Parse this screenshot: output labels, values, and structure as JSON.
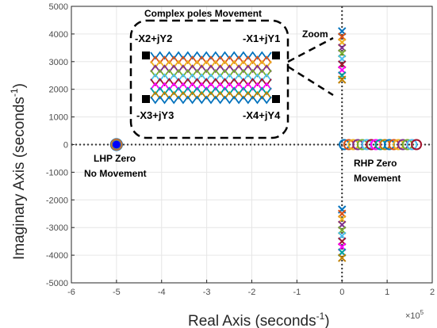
{
  "chart_data": {
    "type": "scatter",
    "title": "",
    "xlabel": "Real Axis (seconds",
    "xlabel_sup": "-1",
    "xlabel_close": ")",
    "ylabel": "Imaginary Axis (seconds",
    "ylabel_sup": "-1",
    "ylabel_close": ")",
    "x_exponent_base": "×10",
    "x_exponent_power": "5",
    "xlim": [
      -6,
      2
    ],
    "ylim": [
      -5000,
      5000
    ],
    "x_ticks": [
      "-6",
      "-5",
      "-4",
      "-3",
      "-2",
      "-1",
      "0",
      "1",
      "2"
    ],
    "y_ticks": [
      "5000",
      "4000",
      "3000",
      "2000",
      "1000",
      "0",
      "-1000",
      "-2000",
      "-3000",
      "-4000",
      "-5000"
    ],
    "grid": true,
    "series": [
      {
        "kind": "lhp-zero",
        "marker": "circle",
        "x": [
          -5,
          -5,
          -5,
          -5,
          -5,
          -5,
          -5
        ],
        "y": [
          0,
          0,
          0,
          0,
          0,
          0,
          0
        ]
      },
      {
        "kind": "rhp-zeros",
        "marker": "circle",
        "x": [
          0.05,
          0.15,
          0.25,
          0.35,
          0.45,
          0.55,
          0.65,
          0.75,
          0.85,
          0.95,
          1.05,
          1.15,
          1.25,
          1.35,
          1.45,
          1.55,
          1.65
        ],
        "y": [
          0,
          0,
          0,
          0,
          0,
          0,
          0,
          0,
          0,
          0,
          0,
          0,
          0,
          0,
          0,
          0,
          0
        ]
      },
      {
        "kind": "poles-upper",
        "marker": "x",
        "x": [
          0,
          0,
          0,
          0,
          0,
          0,
          0,
          0,
          0,
          0
        ],
        "y": [
          4100,
          3900,
          3700,
          3500,
          3300,
          3100,
          2900,
          2700,
          2500,
          2350
        ]
      },
      {
        "kind": "poles-lower",
        "marker": "x",
        "x": [
          0,
          0,
          0,
          0,
          0,
          0,
          0,
          0,
          0,
          0
        ],
        "y": [
          -2350,
          -2500,
          -2700,
          -2900,
          -3100,
          -3300,
          -3500,
          -3700,
          -3900,
          -4100
        ]
      }
    ],
    "palette": [
      "#0072bd",
      "#d95319",
      "#edb120",
      "#7e2f8e",
      "#77ac30",
      "#4dbeee",
      "#a2142f",
      "#ff00ff",
      "#00a0a0",
      "#c08000"
    ],
    "annotations": {
      "inset_title": "Complex poles Movement",
      "zoom": "Zoom",
      "corner_tl": "-X2+jY2",
      "corner_tr": "-X1+jY1",
      "corner_bl": "-X3+jY3",
      "corner_br": "-X4+jY4",
      "lhp_line1": "LHP Zero",
      "lhp_line2": "No Movement",
      "rhp_line1": "RHP Zero",
      "rhp_line2": "Movement"
    }
  }
}
